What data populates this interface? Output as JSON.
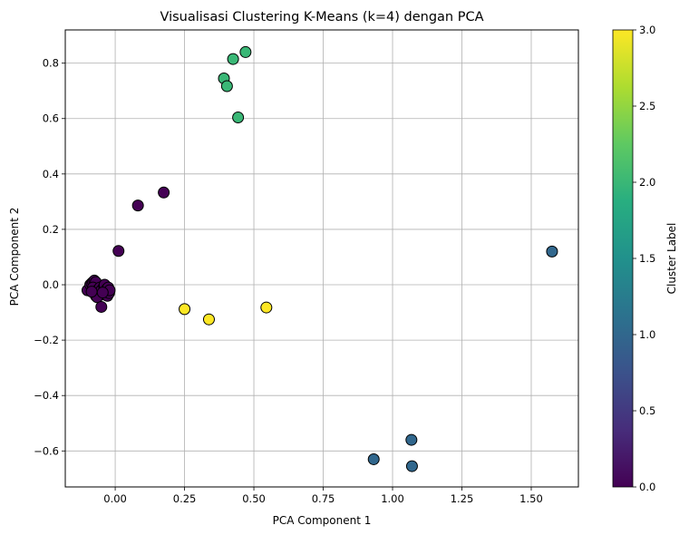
{
  "chart_data": {
    "type": "scatter",
    "title": "Visualisasi Clustering K-Means (k=4) dengan PCA",
    "xlabel": "PCA Component 1",
    "ylabel": "PCA Component 2",
    "xlim": [
      -0.18,
      1.67
    ],
    "ylim": [
      -0.73,
      0.92
    ],
    "grid": true,
    "xticks": [
      0.0,
      0.25,
      0.5,
      0.75,
      1.0,
      1.25,
      1.5
    ],
    "xtick_labels": [
      "0.00",
      "0.25",
      "0.50",
      "0.75",
      "1.00",
      "1.25",
      "1.50"
    ],
    "yticks": [
      -0.6,
      -0.4,
      -0.2,
      0.0,
      0.2,
      0.4,
      0.6,
      0.8
    ],
    "ytick_labels": [
      "−0.6",
      "−0.4",
      "−0.2",
      "0.0",
      "0.2",
      "0.4",
      "0.6",
      "0.8"
    ],
    "colorbar": {
      "label": "Cluster Label",
      "colormap": "viridis",
      "range": [
        0.0,
        3.0
      ],
      "ticks": [
        0.0,
        0.5,
        1.0,
        1.5,
        2.0,
        2.5,
        3.0
      ],
      "tick_labels": [
        "0.0",
        "0.5",
        "1.0",
        "1.5",
        "2.0",
        "2.5",
        "3.0"
      ]
    },
    "colormap_stops": [
      "#440154",
      "#472d7b",
      "#3b528b",
      "#2c728e",
      "#21918c",
      "#28ae80",
      "#5ec962",
      "#addc30",
      "#fde725"
    ],
    "points": [
      {
        "x": -0.1,
        "y": -0.02,
        "label": 0
      },
      {
        "x": -0.09,
        "y": 0.0,
        "label": 0
      },
      {
        "x": -0.085,
        "y": 0.005,
        "label": 0
      },
      {
        "x": -0.08,
        "y": 0.01,
        "label": 0
      },
      {
        "x": -0.075,
        "y": 0.015,
        "label": 0
      },
      {
        "x": -0.07,
        "y": 0.01,
        "label": 0
      },
      {
        "x": -0.08,
        "y": -0.01,
        "label": 0
      },
      {
        "x": -0.075,
        "y": -0.03,
        "label": 0
      },
      {
        "x": -0.07,
        "y": -0.04,
        "label": 0
      },
      {
        "x": -0.065,
        "y": -0.02,
        "label": 0
      },
      {
        "x": -0.06,
        "y": -0.03,
        "label": 0
      },
      {
        "x": -0.055,
        "y": -0.01,
        "label": 0
      },
      {
        "x": -0.05,
        "y": -0.02,
        "label": 0
      },
      {
        "x": -0.045,
        "y": -0.035,
        "label": 0
      },
      {
        "x": -0.04,
        "y": -0.005,
        "label": 0
      },
      {
        "x": -0.038,
        "y": 0.0,
        "label": 0
      },
      {
        "x": -0.035,
        "y": -0.025,
        "label": 0
      },
      {
        "x": -0.03,
        "y": -0.015,
        "label": 0
      },
      {
        "x": -0.028,
        "y": -0.04,
        "label": 0
      },
      {
        "x": -0.025,
        "y": -0.01,
        "label": 0
      },
      {
        "x": -0.022,
        "y": -0.03,
        "label": 0
      },
      {
        "x": -0.02,
        "y": -0.02,
        "label": 0
      },
      {
        "x": -0.065,
        "y": -0.045,
        "label": 0
      },
      {
        "x": -0.085,
        "y": -0.025,
        "label": 0
      },
      {
        "x": -0.05,
        "y": -0.08,
        "label": 0
      },
      {
        "x": -0.045,
        "y": -0.028,
        "label": 0
      },
      {
        "x": 0.012,
        "y": 0.122,
        "label": 0
      },
      {
        "x": 0.082,
        "y": 0.286,
        "label": 0
      },
      {
        "x": 0.175,
        "y": 0.333,
        "label": 0
      },
      {
        "x": 1.575,
        "y": 0.12,
        "label": 1
      },
      {
        "x": 0.932,
        "y": -0.63,
        "label": 1
      },
      {
        "x": 1.068,
        "y": -0.56,
        "label": 1
      },
      {
        "x": 1.07,
        "y": -0.655,
        "label": 1
      },
      {
        "x": 0.47,
        "y": 0.84,
        "label": 2
      },
      {
        "x": 0.425,
        "y": 0.815,
        "label": 2
      },
      {
        "x": 0.392,
        "y": 0.745,
        "label": 2
      },
      {
        "x": 0.403,
        "y": 0.717,
        "label": 2
      },
      {
        "x": 0.443,
        "y": 0.604,
        "label": 2
      },
      {
        "x": 0.25,
        "y": -0.088,
        "label": 3
      },
      {
        "x": 0.338,
        "y": -0.125,
        "label": 3
      },
      {
        "x": 0.545,
        "y": -0.082,
        "label": 3
      }
    ]
  }
}
